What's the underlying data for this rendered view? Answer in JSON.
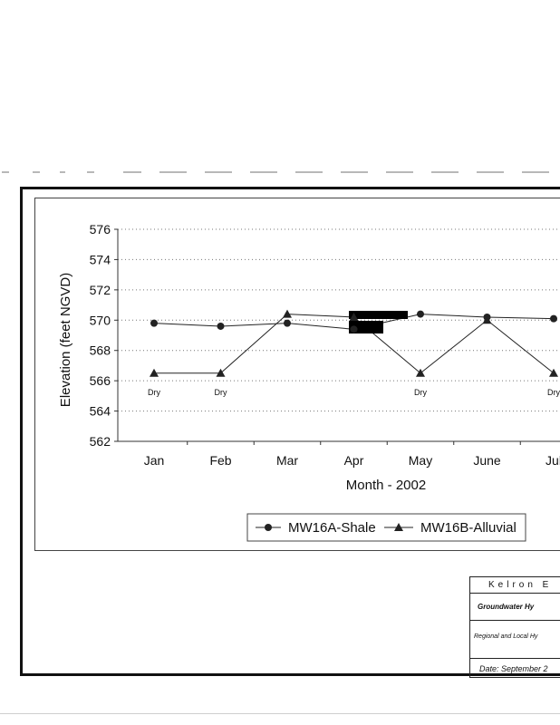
{
  "chart_data": {
    "type": "line",
    "categories": [
      "Jan",
      "Feb",
      "Mar",
      "Apr",
      "May",
      "June",
      "Jul"
    ],
    "category_labels_visible": [
      "Jan",
      "Feb",
      "Mar",
      "Apr",
      "May",
      "June",
      "Jul"
    ],
    "series": [
      {
        "name": "MW16A-Shale",
        "marker": "circle",
        "values": [
          569.8,
          569.6,
          569.8,
          569.4,
          570.4,
          570.2,
          570.1
        ]
      },
      {
        "name": "MW16B-Alluvial",
        "marker": "triangle",
        "values": [
          566.5,
          566.5,
          570.4,
          570.2,
          566.5,
          570.0,
          566.5
        ]
      }
    ],
    "xlabel": "Month - 2002",
    "ylabel": "Elevation (feet NGVD)",
    "ylim": [
      562,
      576
    ],
    "yticks": [
      562,
      564,
      566,
      568,
      570,
      572,
      574,
      576
    ],
    "grid": true,
    "legend_placement": "bottom-center",
    "annotations": [
      {
        "category": "Jan",
        "text": "Dry"
      },
      {
        "category": "Feb",
        "text": "Dry"
      },
      {
        "category": "May",
        "text": "Dry"
      },
      {
        "category": "Jul",
        "text": "Dry"
      }
    ]
  },
  "title_block": {
    "company": "Kelron E",
    "title": "Groundwater Hy",
    "subtitle": "Regional and Local Hy",
    "date": "Date: September 2"
  }
}
